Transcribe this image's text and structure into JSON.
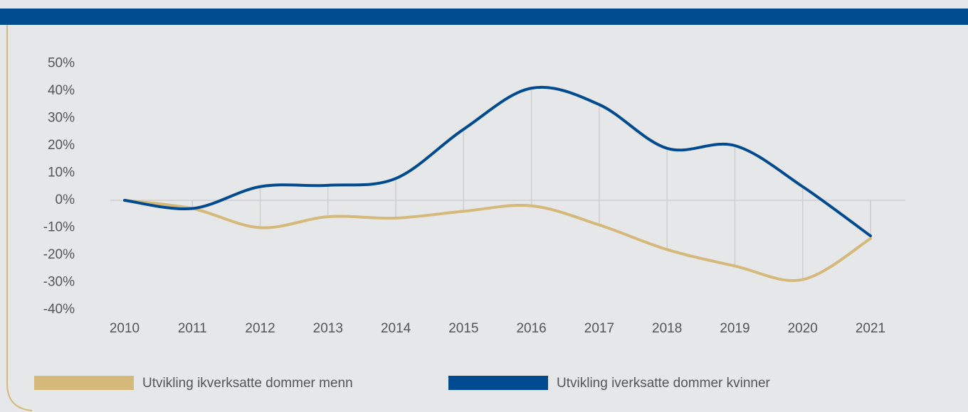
{
  "chart_data": {
    "type": "line",
    "categories": [
      "2010",
      "2011",
      "2012",
      "2013",
      "2014",
      "2015",
      "2016",
      "2017",
      "2018",
      "2019",
      "2020",
      "2021"
    ],
    "series": [
      {
        "name": "Utvikling ikverksatte dommer menn",
        "color": "#d4b97a",
        "values": [
          0,
          -3,
          -10,
          -6,
          -6.5,
          -4,
          -2,
          -9,
          -18,
          -24,
          -29,
          -14
        ]
      },
      {
        "name": "Utvikling iverksatte dommer kvinner",
        "color": "#004a8f",
        "values": [
          0,
          -3,
          5,
          5.5,
          8,
          26,
          41,
          35,
          19,
          20,
          5,
          -13
        ]
      }
    ],
    "ylim": [
      -40,
      50
    ],
    "yticks": [
      {
        "value": 50,
        "label": "50%"
      },
      {
        "value": 40,
        "label": "40%"
      },
      {
        "value": 30,
        "label": "30%"
      },
      {
        "value": 20,
        "label": "20%"
      },
      {
        "value": 10,
        "label": "10%"
      },
      {
        "value": 0,
        "label": "0%"
      },
      {
        "value": -10,
        "label": "-10%"
      },
      {
        "value": -20,
        "label": "-20%"
      },
      {
        "value": -30,
        "label": "-30%"
      },
      {
        "value": -40,
        "label": "-40%"
      }
    ],
    "legend": "bottom"
  }
}
